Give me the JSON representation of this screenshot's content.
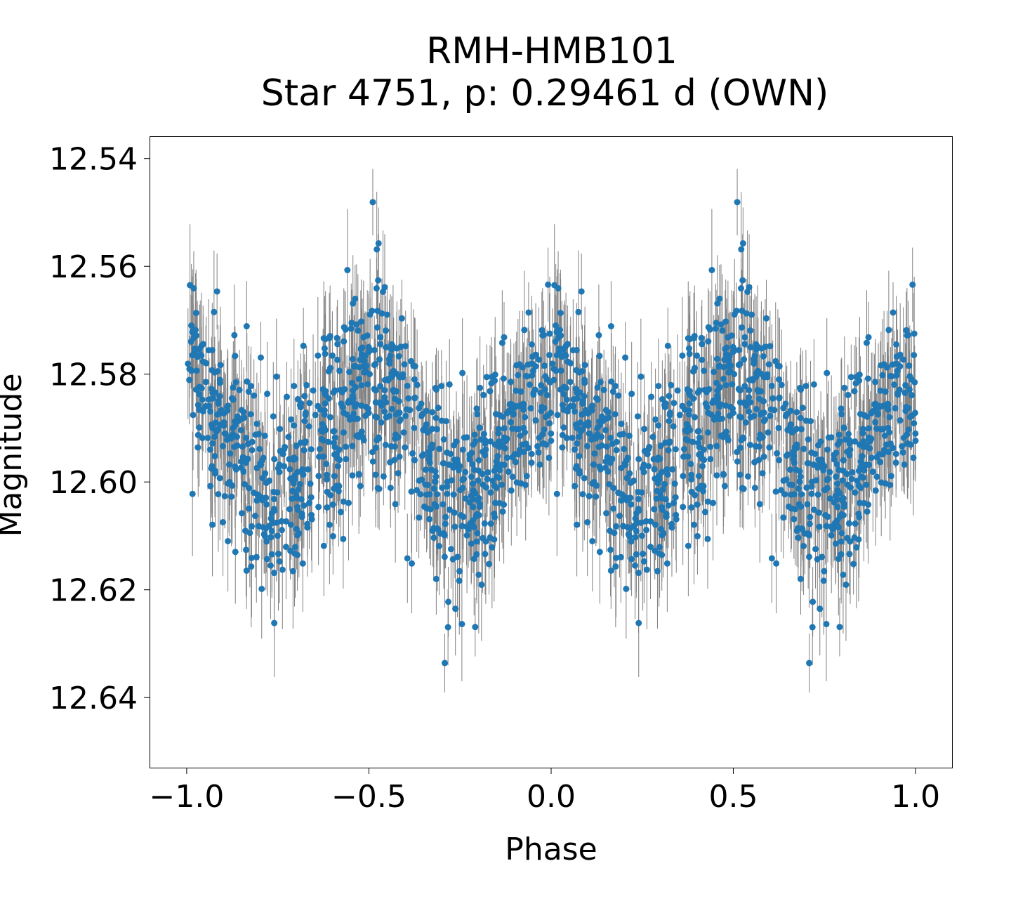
{
  "chart_data": {
    "type": "scatter",
    "title": "RMH-HMB101",
    "subtitle": "Star 4751, p: 0.29461 d (OWN)",
    "xlabel": "Phase",
    "ylabel": "Magnitude",
    "xlim": [
      -1.1,
      1.1
    ],
    "ylim": [
      12.653,
      12.536
    ],
    "y_inverted": true,
    "x_ticks": [
      -1.0,
      -0.5,
      0.0,
      0.5,
      1.0
    ],
    "x_tick_labels": [
      "−1.0",
      "−0.5",
      "0.0",
      "0.5",
      "1.0"
    ],
    "y_ticks": [
      12.54,
      12.56,
      12.58,
      12.6,
      12.62,
      12.64
    ],
    "y_tick_labels": [
      "12.54",
      "12.56",
      "12.58",
      "12.60",
      "12.62",
      "12.64"
    ],
    "grid": false,
    "legend": "none",
    "error_bars": true,
    "phase_range": [
      -1.0,
      1.0
    ],
    "points_per_cycle": 900,
    "mean_magnitude": 12.5925,
    "amplitude": 0.0105,
    "harmonic": 2,
    "phase_of_brightest": 0.0,
    "scatter_sigma": 0.0095,
    "typical_error": 0.008,
    "colors": {
      "points": "#1f77b4",
      "error_bars": "#808080",
      "axes": "#000000",
      "background": "#ffffff"
    }
  }
}
